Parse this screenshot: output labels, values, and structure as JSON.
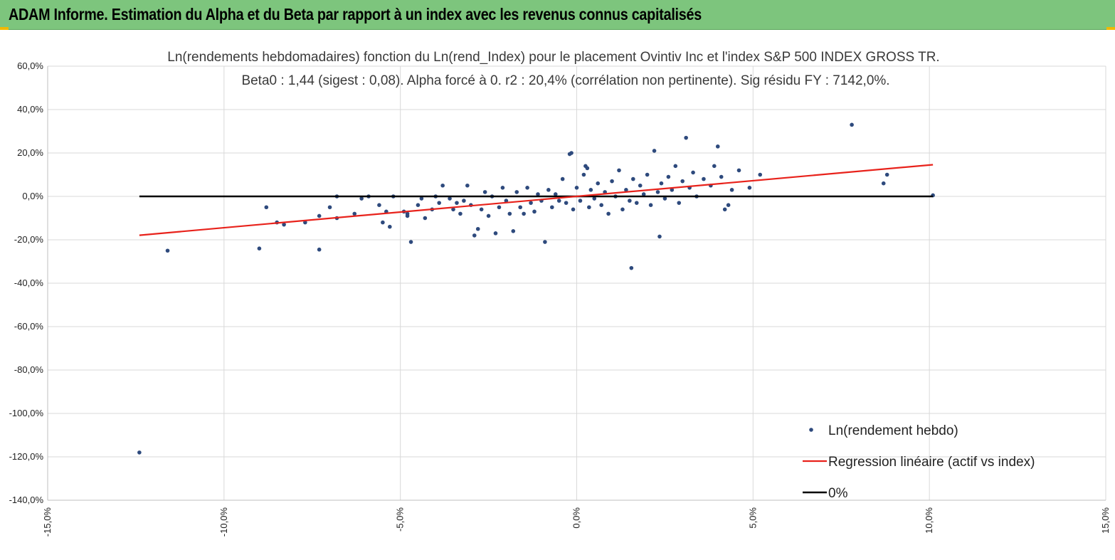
{
  "header": {
    "title": "ADAM Informe. Estimation du Alpha et du Beta par rapport à un index avec les revenus connus capitalisés",
    "background_color": "#7dc57d"
  },
  "chart_data": {
    "type": "scatter",
    "title": "Ln(rendements hebdomadaires) fonction du Ln(rend_Index) pour le placement Ovintiv Inc et l'index S&P 500 INDEX GROSS TR.",
    "subtitle": "Beta0 : 1,44 (sigest : 0,08). Alpha forcé à 0. r2 : 20,4% (corrélation non pertinente). Sig résidu FY : 7142,0%.",
    "xlabel": "",
    "ylabel": "",
    "xlim": [
      -15,
      15
    ],
    "ylim": [
      -140,
      60
    ],
    "x_ticks": [
      "-15,0%",
      "-10,0%",
      "-5,0%",
      "0,0%",
      "5,0%",
      "10,0%",
      "15,0%"
    ],
    "y_ticks": [
      "60,0%",
      "40,0%",
      "20,0%",
      "0,0%",
      "-20,0%",
      "-40,0%",
      "-60,0%",
      "-80,0%",
      "-100,0%",
      "-120,0%",
      "-140,0%"
    ],
    "grid": true,
    "legend_position": "bottom-right",
    "series": [
      {
        "name": "Ln(rendement hebdo)",
        "kind": "scatter",
        "color": "#2e4a7d",
        "points": [
          [
            -12.4,
            -118
          ],
          [
            -11.6,
            -25
          ],
          [
            -9.0,
            -24
          ],
          [
            -8.8,
            -5
          ],
          [
            -8.5,
            -12
          ],
          [
            -8.3,
            -13
          ],
          [
            -7.7,
            -12
          ],
          [
            -7.3,
            -24.5
          ],
          [
            -7.3,
            -9
          ],
          [
            -7.0,
            -5
          ],
          [
            -6.8,
            0
          ],
          [
            -6.8,
            -10
          ],
          [
            -6.3,
            -8
          ],
          [
            -6.1,
            -1
          ],
          [
            -5.9,
            0
          ],
          [
            -5.6,
            -4
          ],
          [
            -5.5,
            -12
          ],
          [
            -5.4,
            -7
          ],
          [
            -5.3,
            -14
          ],
          [
            -5.2,
            0
          ],
          [
            -4.9,
            -7
          ],
          [
            -4.8,
            -8
          ],
          [
            -4.8,
            -9
          ],
          [
            -4.7,
            -21
          ],
          [
            -4.5,
            -4
          ],
          [
            -4.4,
            -1
          ],
          [
            -4.3,
            -10
          ],
          [
            -4.1,
            -6
          ],
          [
            -4.0,
            0
          ],
          [
            -3.9,
            -3
          ],
          [
            -3.8,
            5
          ],
          [
            -3.6,
            -1
          ],
          [
            -3.5,
            -6
          ],
          [
            -3.4,
            -3
          ],
          [
            -3.3,
            -8
          ],
          [
            -3.2,
            -2
          ],
          [
            -3.1,
            5
          ],
          [
            -3.0,
            -4
          ],
          [
            -2.9,
            -18
          ],
          [
            -2.8,
            -15
          ],
          [
            -2.7,
            -6
          ],
          [
            -2.6,
            2
          ],
          [
            -2.5,
            -9
          ],
          [
            -2.4,
            0
          ],
          [
            -2.3,
            -17
          ],
          [
            -2.2,
            -5
          ],
          [
            -2.1,
            4
          ],
          [
            -2.0,
            -2
          ],
          [
            -1.9,
            -8
          ],
          [
            -1.8,
            -16
          ],
          [
            -1.7,
            2
          ],
          [
            -1.6,
            -5
          ],
          [
            -1.5,
            -8
          ],
          [
            -1.4,
            4
          ],
          [
            -1.3,
            -3
          ],
          [
            -1.2,
            -7
          ],
          [
            -1.1,
            1
          ],
          [
            -1.0,
            -2
          ],
          [
            -0.9,
            -21
          ],
          [
            -0.8,
            3
          ],
          [
            -0.7,
            -5
          ],
          [
            -0.6,
            1
          ],
          [
            -0.5,
            -2
          ],
          [
            -0.4,
            8
          ],
          [
            -0.3,
            -3
          ],
          [
            -0.2,
            19.5
          ],
          [
            -0.15,
            20
          ],
          [
            -0.1,
            -6
          ],
          [
            0.0,
            4
          ],
          [
            0.1,
            -2
          ],
          [
            0.2,
            10
          ],
          [
            0.25,
            14
          ],
          [
            0.3,
            13
          ],
          [
            0.35,
            -5
          ],
          [
            0.4,
            3
          ],
          [
            0.5,
            -1
          ],
          [
            0.6,
            6
          ],
          [
            0.7,
            -4
          ],
          [
            0.8,
            2
          ],
          [
            0.9,
            -8
          ],
          [
            1.0,
            7
          ],
          [
            1.1,
            0
          ],
          [
            1.2,
            12
          ],
          [
            1.3,
            -6
          ],
          [
            1.4,
            3
          ],
          [
            1.5,
            -2
          ],
          [
            1.55,
            -33
          ],
          [
            1.6,
            8
          ],
          [
            1.7,
            -3
          ],
          [
            1.8,
            5
          ],
          [
            1.9,
            1
          ],
          [
            2.0,
            10
          ],
          [
            2.1,
            -4
          ],
          [
            2.2,
            21
          ],
          [
            2.3,
            2
          ],
          [
            2.35,
            -18.5
          ],
          [
            2.4,
            6
          ],
          [
            2.5,
            -1
          ],
          [
            2.6,
            9
          ],
          [
            2.7,
            3
          ],
          [
            2.8,
            14
          ],
          [
            2.9,
            -3
          ],
          [
            3.0,
            7
          ],
          [
            3.1,
            27
          ],
          [
            3.2,
            4
          ],
          [
            3.3,
            11
          ],
          [
            3.4,
            0
          ],
          [
            3.6,
            8
          ],
          [
            3.8,
            5
          ],
          [
            3.9,
            14
          ],
          [
            4.0,
            23
          ],
          [
            4.1,
            9
          ],
          [
            4.2,
            -6
          ],
          [
            4.3,
            -4
          ],
          [
            4.4,
            3
          ],
          [
            4.6,
            12
          ],
          [
            4.9,
            4
          ],
          [
            5.2,
            10
          ],
          [
            7.8,
            33
          ],
          [
            8.7,
            6
          ],
          [
            8.8,
            10
          ],
          [
            10.1,
            0.5
          ]
        ]
      },
      {
        "name": "Regression linéaire (actif vs index)",
        "kind": "line",
        "color": "#e8221b",
        "x": [
          -12.4,
          10.1
        ],
        "y": [
          -17.9,
          14.6
        ]
      },
      {
        "name": "0%",
        "kind": "line",
        "color": "#000000",
        "x": [
          -12.4,
          10.1
        ],
        "y": [
          0,
          0
        ]
      }
    ]
  }
}
